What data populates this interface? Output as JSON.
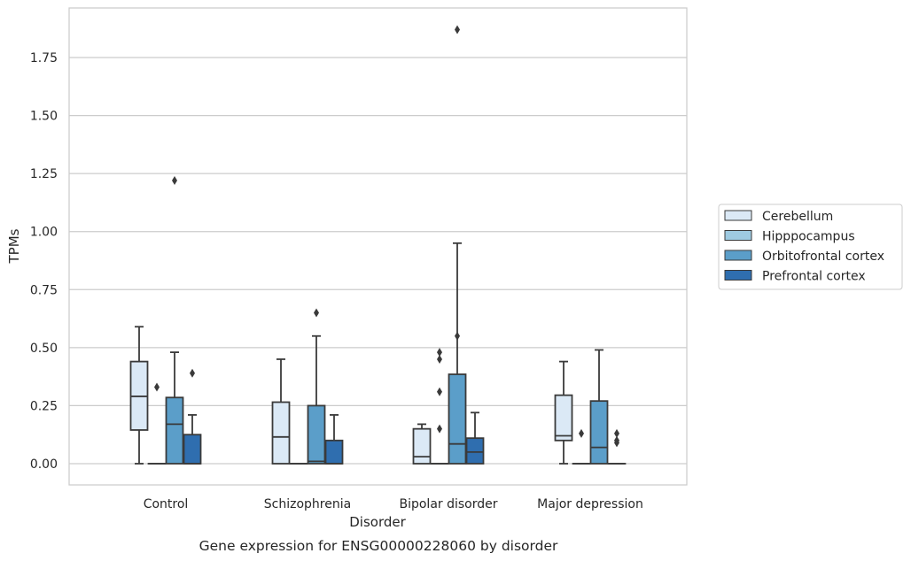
{
  "chart_data": {
    "type": "boxplot",
    "title": "Gene expression for ENSG00000228060 by disorder",
    "xlabel": "Disorder",
    "ylabel": "TPMs",
    "ylim": [
      -0.09,
      1.965
    ],
    "yticks": [
      "0.00",
      "0.25",
      "0.50",
      "0.75",
      "1.00",
      "1.25",
      "1.50",
      "1.75"
    ],
    "grid": "horizontal",
    "legend_position": "right",
    "categories": [
      "Control",
      "Schizophrenia",
      "Bipolar disorder",
      "Major depression"
    ],
    "series": [
      {
        "name": "Cerebellum",
        "color": "#dbe9f6",
        "boxes": [
          {
            "whislo": 0.0,
            "q1": 0.145,
            "med": 0.29,
            "q3": 0.44,
            "whishi": 0.59,
            "fliers": []
          },
          {
            "whislo": 0.0,
            "q1": 0.0,
            "med": 0.115,
            "q3": 0.265,
            "whishi": 0.45,
            "fliers": []
          },
          {
            "whislo": 0.0,
            "q1": 0.0,
            "med": 0.03,
            "q3": 0.15,
            "whishi": 0.17,
            "fliers": []
          },
          {
            "whislo": 0.0,
            "q1": 0.1,
            "med": 0.12,
            "q3": 0.295,
            "whishi": 0.44,
            "fliers": []
          }
        ]
      },
      {
        "name": "Hipppocampus",
        "color": "#9ecae1",
        "boxes": [
          {
            "whislo": 0.0,
            "q1": 0.0,
            "med": 0.0,
            "q3": 0.0,
            "whishi": 0.0,
            "fliers": [
              0.33
            ]
          },
          {
            "whislo": 0.0,
            "q1": 0.0,
            "med": 0.0,
            "q3": 0.0,
            "whishi": 0.0,
            "fliers": []
          },
          {
            "whislo": 0.0,
            "q1": 0.0,
            "med": 0.0,
            "q3": 0.0,
            "whishi": 0.0,
            "fliers": [
              0.15,
              0.31,
              0.45,
              0.48
            ]
          },
          {
            "whislo": 0.0,
            "q1": 0.0,
            "med": 0.0,
            "q3": 0.0,
            "whishi": 0.0,
            "fliers": [
              0.13
            ]
          }
        ]
      },
      {
        "name": "Orbitofrontal cortex",
        "color": "#5b9ec9",
        "boxes": [
          {
            "whislo": 0.0,
            "q1": 0.0,
            "med": 0.17,
            "q3": 0.285,
            "whishi": 0.48,
            "fliers": [
              1.22
            ]
          },
          {
            "whislo": 0.0,
            "q1": 0.0,
            "med": 0.01,
            "q3": 0.25,
            "whishi": 0.55,
            "fliers": [
              0.65
            ]
          },
          {
            "whislo": 0.0,
            "q1": 0.0,
            "med": 0.085,
            "q3": 0.385,
            "whishi": 0.95,
            "fliers": [
              0.55,
              1.87
            ]
          },
          {
            "whislo": 0.0,
            "q1": 0.0,
            "med": 0.07,
            "q3": 0.27,
            "whishi": 0.49,
            "fliers": []
          }
        ]
      },
      {
        "name": "Prefrontal cortex",
        "color": "#2f6eaf",
        "boxes": [
          {
            "whislo": 0.0,
            "q1": 0.0,
            "med": 0.0,
            "q3": 0.125,
            "whishi": 0.21,
            "fliers": [
              0.39
            ]
          },
          {
            "whislo": 0.0,
            "q1": 0.0,
            "med": 0.0,
            "q3": 0.1,
            "whishi": 0.21,
            "fliers": []
          },
          {
            "whislo": 0.0,
            "q1": 0.0,
            "med": 0.05,
            "q3": 0.11,
            "whishi": 0.22,
            "fliers": []
          },
          {
            "whislo": 0.0,
            "q1": 0.0,
            "med": 0.0,
            "q3": 0.0,
            "whishi": 0.0,
            "fliers": [
              0.09,
              0.1,
              0.13
            ]
          }
        ]
      }
    ]
  }
}
